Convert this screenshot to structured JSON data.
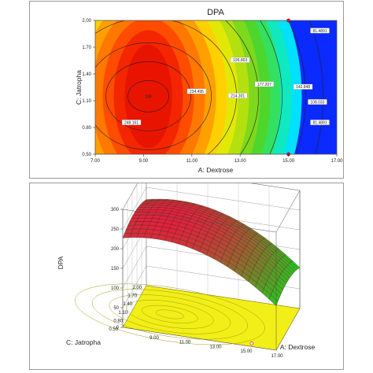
{
  "chart_data": [
    {
      "type": "contour",
      "title": "DPA",
      "xlabel": "A: Dextrose",
      "ylabel": "C: Jatropha",
      "xlim": [
        7.0,
        17.0
      ],
      "ylim": [
        0.5,
        2.0
      ],
      "x_ticks": [
        "7.00",
        "9.00",
        "11.00",
        "13.00",
        "15.00",
        "17.00"
      ],
      "y_ticks": [
        "0.50",
        "0.80",
        "1.10",
        "1.40",
        "1.70",
        "2.00"
      ],
      "colormap": [
        "#0a2aff",
        "#00d8ff",
        "#2ad42a",
        "#ffe600",
        "#ff2a00"
      ],
      "center_value_label": "249",
      "center": {
        "x": 9.2,
        "y": 1.15
      },
      "contours": [
        {
          "label": "248.161",
          "x": 8.5,
          "y": 0.85
        },
        {
          "label": "234.495",
          "x": 11.2,
          "y": 1.2
        },
        {
          "label": "214.301",
          "x": 12.9,
          "y": 1.15
        },
        {
          "label": "196.803",
          "x": 13.0,
          "y": 1.55
        },
        {
          "label": "177.207",
          "x": 14.0,
          "y": 1.28
        },
        {
          "label": "142.848",
          "x": 15.6,
          "y": 1.25
        },
        {
          "label": "108.033",
          "x": 16.2,
          "y": 1.08
        },
        {
          "label": "81.4891",
          "x": 16.3,
          "y": 1.88
        },
        {
          "label": "81.4891",
          "x": 16.3,
          "y": 0.85
        }
      ],
      "design_points": [
        {
          "x": 15.0,
          "y": 2.0
        },
        {
          "x": 15.0,
          "y": 0.5
        }
      ]
    },
    {
      "type": "surface3d",
      "zlabel": "DPA",
      "xlabel": "A: Dextrose",
      "ylabel": "C: Jatropha",
      "z_ticks": [
        "0",
        "50",
        "100",
        "150",
        "200",
        "250",
        "300"
      ],
      "x_ticks": [
        "7.00",
        "9.00",
        "11.00",
        "13.00",
        "15.00",
        "17.00"
      ],
      "y_ticks": [
        "0.50",
        "0.80",
        "1.10",
        "1.40",
        "1.70",
        "2.00"
      ],
      "zlim": [
        0,
        300
      ],
      "peak": 249
    }
  ]
}
